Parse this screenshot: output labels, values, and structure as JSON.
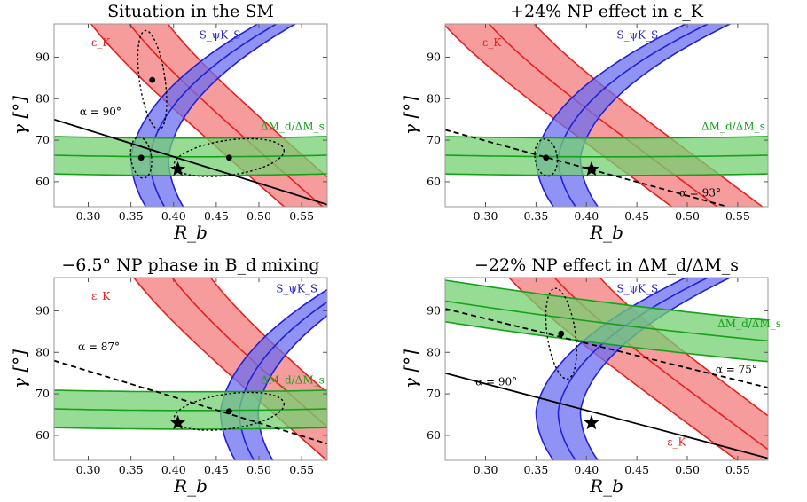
{
  "colors": {
    "epsK": "#e8211f",
    "epsK_fill": "#f47b7b",
    "SphiKs": "#1f22d6",
    "SphiKs_fill": "#6b6ef0",
    "dM": "#16a11a",
    "dM_fill": "#74d072",
    "frame": "#999999",
    "alpha_line": "#000000"
  },
  "chart_data": [
    {
      "type": "band-plot",
      "title": "Situation in the SM",
      "xlabel": "R_b",
      "ylabel": "γ [°]",
      "xlim": [
        0.26,
        0.58
      ],
      "ylim": [
        54,
        98
      ],
      "xticks": [
        "0.30",
        "0.35",
        "0.40",
        "0.45",
        "0.50",
        "0.55"
      ],
      "yticks": [
        "60",
        "70",
        "80",
        "90"
      ],
      "band_labels": {
        "epsK": "ε_K",
        "SphiKs": "S_ψK_S",
        "dM": "ΔM_d/ΔM_s"
      },
      "alpha_label": "α = 90°",
      "alpha_line": {
        "style": "solid",
        "points": [
          [
            0.26,
            75
          ],
          [
            0.58,
            54.5
          ]
        ]
      },
      "bands": {
        "epsK": {
          "shift": 0,
          "show": true
        },
        "SphiKs": {
          "shift": 0,
          "show": true
        },
        "dM": {
          "center": 66,
          "halfwidth": 4.5,
          "slope": -15,
          "show": true
        }
      },
      "fits": [
        {
          "center": [
            0.362,
            65.8
          ],
          "rx": 0.012,
          "ry": 5
        },
        {
          "center": [
            0.375,
            84.5
          ],
          "rx": 0.015,
          "ry": 12
        },
        {
          "center": [
            0.465,
            65.8
          ],
          "rx": 0.065,
          "ry": 4.2
        }
      ],
      "star": [
        0.405,
        63
      ]
    },
    {
      "type": "band-plot",
      "title": "+24% NP effect in ε_K",
      "xlabel": "R_b",
      "ylabel": "γ [°]",
      "xlim": [
        0.26,
        0.58
      ],
      "ylim": [
        54,
        98
      ],
      "xticks": [
        "0.30",
        "0.35",
        "0.40",
        "0.45",
        "0.50",
        "0.55"
      ],
      "yticks": [
        "60",
        "70",
        "80",
        "90"
      ],
      "band_labels": {
        "epsK": "ε_K",
        "SphiKs": "S_ψK_S",
        "dM": "ΔM_d/ΔM_s"
      },
      "alpha_label": "α = 93°",
      "alpha_line": {
        "style": "dashed",
        "points": [
          [
            0.26,
            72.5
          ],
          [
            0.54,
            54
          ]
        ]
      },
      "bands": {
        "epsK": {
          "shift": -0.045,
          "show": true
        },
        "SphiKs": {
          "shift": 0,
          "show": true
        },
        "dM": {
          "center": 66,
          "halfwidth": 4.5,
          "slope": -15,
          "show": true
        }
      },
      "fits": [
        {
          "center": [
            0.36,
            65.8
          ],
          "rx": 0.011,
          "ry": 4.5
        }
      ],
      "star": [
        0.405,
        63
      ]
    },
    {
      "type": "band-plot",
      "title": "−6.5° NP phase in B_d mixing",
      "xlabel": "R_b",
      "ylabel": "γ [°]",
      "xlim": [
        0.26,
        0.58
      ],
      "ylim": [
        54,
        98
      ],
      "xticks": [
        "0.30",
        "0.35",
        "0.40",
        "0.45",
        "0.50",
        "0.55"
      ],
      "yticks": [
        "60",
        "70",
        "80",
        "90"
      ],
      "band_labels": {
        "epsK": "ε_K",
        "SphiKs": "S_ψK_S",
        "dM": "ΔM_d/ΔM_s"
      },
      "alpha_label": "α = 87°",
      "alpha_line": {
        "style": "dashed",
        "points": [
          [
            0.26,
            78
          ],
          [
            0.58,
            58
          ]
        ]
      },
      "bands": {
        "epsK": {
          "shift": 0.05,
          "show": true
        },
        "SphiKs": {
          "shift": 0.105,
          "show": true
        },
        "dM": {
          "center": 66,
          "halfwidth": 4.5,
          "slope": -15,
          "show": true
        }
      },
      "fits": [
        {
          "center": [
            0.465,
            65.8
          ],
          "rx": 0.065,
          "ry": 4.2
        }
      ],
      "star": [
        0.405,
        63
      ]
    },
    {
      "type": "band-plot",
      "title": "−22% NP effect in ΔM_d/ΔM_s",
      "xlabel": "R_b",
      "ylabel": "γ [°]",
      "xlim": [
        0.26,
        0.58
      ],
      "ylim": [
        54,
        98
      ],
      "xticks": [
        "0.30",
        "0.35",
        "0.40",
        "0.45",
        "0.50",
        "0.55"
      ],
      "yticks": [
        "60",
        "70",
        "80",
        "90"
      ],
      "band_labels": {
        "epsK": "ε_K",
        "SphiKs": "S_ψK_S",
        "dM": "ΔM_d/ΔM_s"
      },
      "alpha_labels": [
        "α = 90°",
        "α = 75°"
      ],
      "alpha_line": {
        "style": "solid",
        "points": [
          [
            0.26,
            75
          ],
          [
            0.58,
            54.5
          ]
        ]
      },
      "alpha_line2": {
        "style": "dashed",
        "points": [
          [
            0.26,
            90.5
          ],
          [
            0.58,
            71.5
          ]
        ]
      },
      "bands": {
        "epsK": {
          "shift": 0.02,
          "show": true
        },
        "SphiKs": {
          "shift": 0,
          "show": true
        },
        "dM": {
          "center": 87,
          "halfwidth": 5,
          "slope": -22,
          "show": true
        }
      },
      "fits": [
        {
          "center": [
            0.375,
            84.5
          ],
          "rx": 0.014,
          "ry": 11
        }
      ],
      "star": [
        0.405,
        63
      ]
    }
  ]
}
